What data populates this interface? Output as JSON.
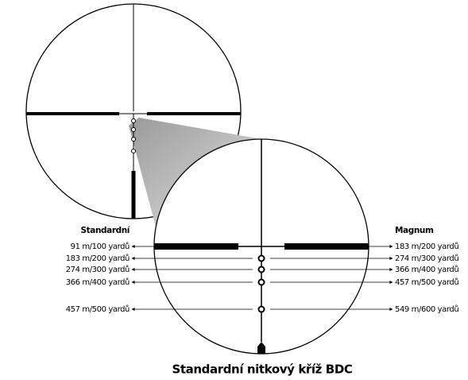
{
  "left_heading": "Standardní",
  "right_heading": "Magnum",
  "left_labels": [
    "91 m/100 yardů",
    "183 m/200 yardů",
    "274 m/300 yardů",
    "366 m/400 yardů",
    "457 m/500 yardů"
  ],
  "right_labels": [
    "183 m/200 yardů",
    "274 m/300 yardů",
    "366 m/400 yardů",
    "457 m/500 yardů",
    "549 m/600 yardů"
  ],
  "caption": "Standardní nitkový kříž BDC"
}
